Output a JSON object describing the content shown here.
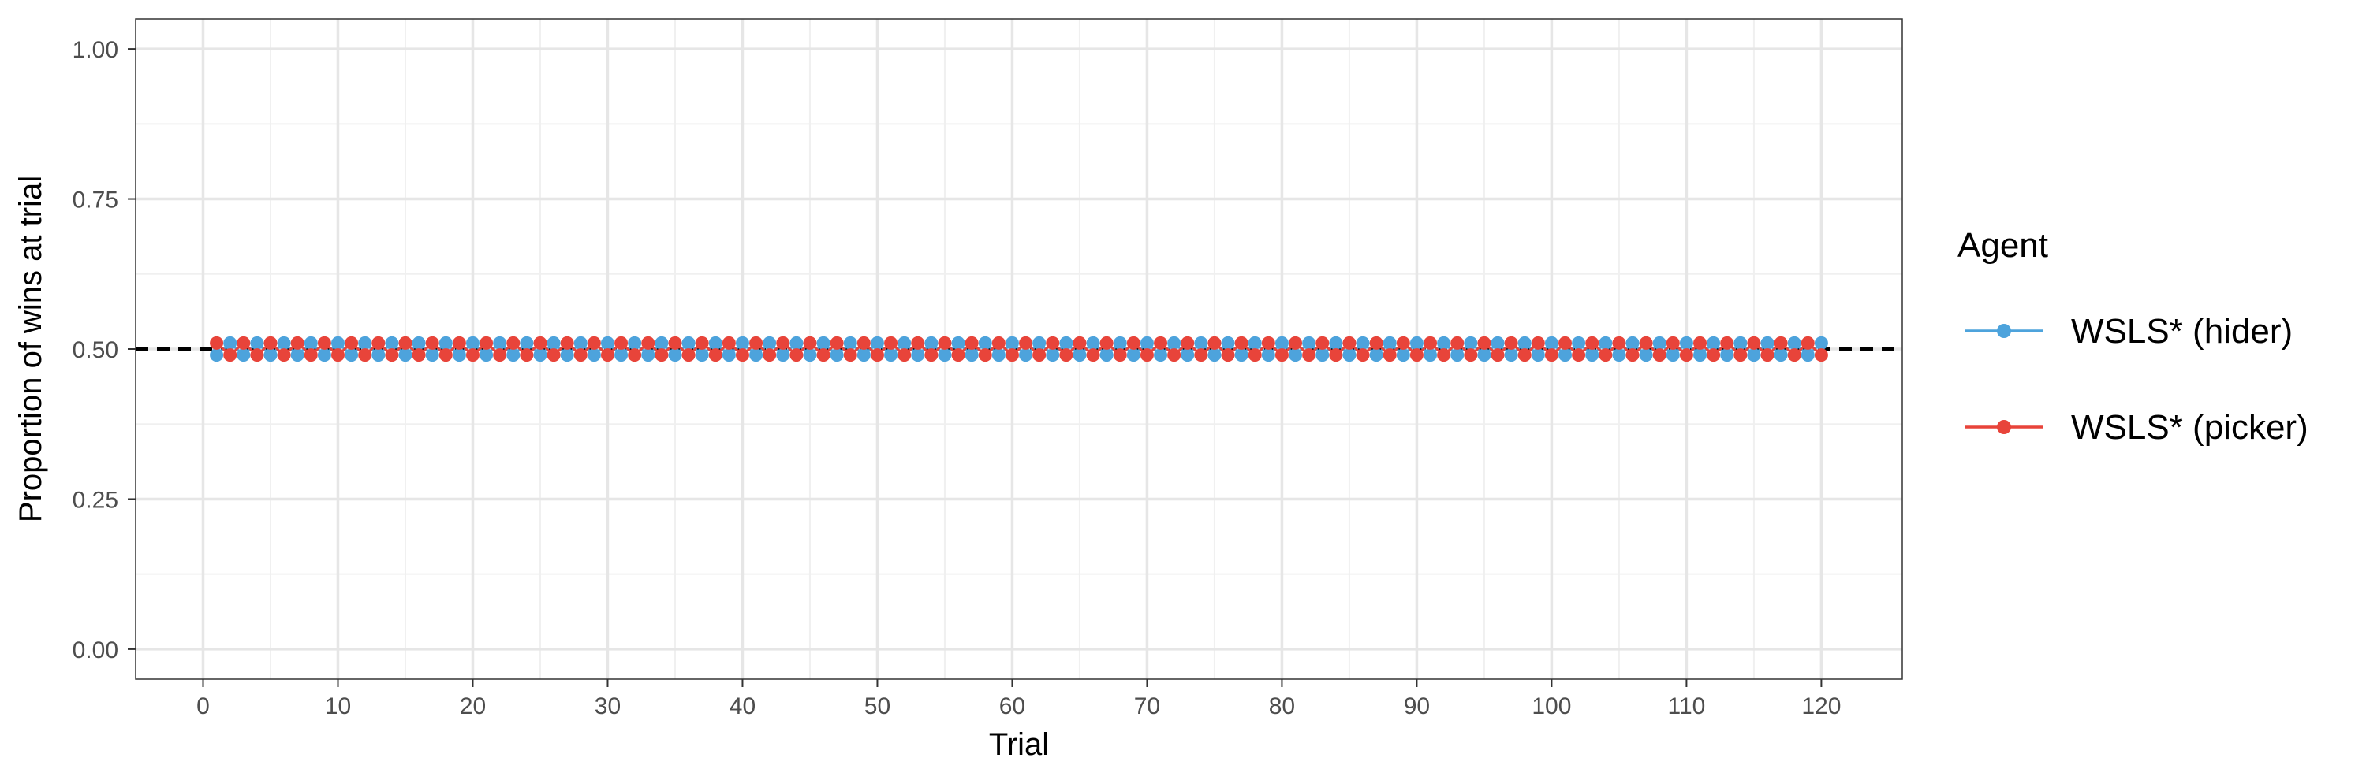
{
  "chart_data": {
    "type": "line",
    "title": "",
    "xlabel": "Trial",
    "ylabel": "Proportion of wins at trial",
    "xlim": [
      -5,
      126
    ],
    "ylim": [
      -0.05,
      1.05
    ],
    "x_ticks": [
      0,
      10,
      20,
      30,
      40,
      50,
      60,
      70,
      80,
      90,
      100,
      110,
      120
    ],
    "x_tick_labels": [
      "0",
      "10",
      "20",
      "30",
      "40",
      "50",
      "60",
      "70",
      "80",
      "90",
      "100",
      "110",
      "120"
    ],
    "y_ticks": [
      0,
      0.25,
      0.5,
      0.75,
      1
    ],
    "y_tick_labels": [
      "0.00",
      "0.25",
      "0.50",
      "0.75",
      "1.00"
    ],
    "reference_line": {
      "y": 0.5,
      "style": "dashed",
      "color": "#000000"
    },
    "grid": true,
    "legend": {
      "title": "Agent",
      "placement": "right"
    },
    "x": {
      "start": 1,
      "end": 120,
      "step": 1
    },
    "series": [
      {
        "name": "WSLS* (hider)",
        "color": "#4da3dc",
        "pattern": [
          0.49,
          0.51
        ]
      },
      {
        "name": "WSLS* (picker)",
        "color": "#e8443a",
        "pattern": [
          0.51,
          0.49
        ]
      }
    ]
  }
}
